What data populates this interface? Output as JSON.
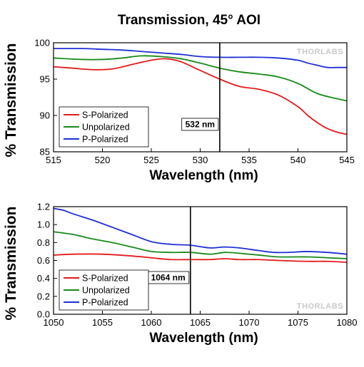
{
  "title": "Transmission, 45° AOI",
  "chart_data": [
    {
      "type": "line",
      "xlabel": "Wavelength (nm)",
      "ylabel": "% Transmission",
      "xlim": [
        515,
        545
      ],
      "ylim": [
        85,
        100
      ],
      "xticks": [
        515,
        520,
        525,
        530,
        535,
        540,
        545
      ],
      "yticks": [
        85,
        90,
        95,
        100
      ],
      "ytick_labels": [
        "85",
        "90",
        "95",
        "100"
      ],
      "grid": false,
      "legend": "bottom-left",
      "marker": {
        "x": 532,
        "label": "532 nm"
      },
      "watermark": "THORLABS",
      "series": [
        {
          "name": "S-Polarized",
          "color": "#e41a1c",
          "x": [
            515,
            517,
            519,
            521,
            523,
            525,
            526.5,
            528,
            530,
            532,
            534,
            536,
            538,
            540,
            541,
            542,
            543,
            544,
            545
          ],
          "y": [
            96.7,
            96.5,
            96.3,
            96.4,
            97.0,
            97.6,
            97.8,
            97.4,
            96.2,
            95.0,
            94.0,
            93.6,
            92.8,
            91.2,
            90.0,
            89.0,
            88.2,
            87.7,
            87.4
          ]
        },
        {
          "name": "Unpolarized",
          "color": "#1a8a1a",
          "x": [
            515,
            518,
            520,
            522,
            524,
            526,
            528,
            530,
            532,
            534,
            536,
            538,
            540,
            542,
            544,
            545
          ],
          "y": [
            97.9,
            97.7,
            97.7,
            97.9,
            98.2,
            98.1,
            97.8,
            97.2,
            96.5,
            96.0,
            95.7,
            95.3,
            94.4,
            93.0,
            92.3,
            92.0
          ]
        },
        {
          "name": "P-Polarized",
          "color": "#1f2fd6",
          "x": [
            515,
            518,
            520,
            522,
            524,
            526,
            528,
            530,
            532,
            534,
            536,
            538,
            540,
            541,
            542,
            543,
            544,
            545
          ],
          "y": [
            99.2,
            99.2,
            99.1,
            99.0,
            98.8,
            98.6,
            98.4,
            98.1,
            98.0,
            98.0,
            98.0,
            97.9,
            97.6,
            97.2,
            96.9,
            96.6,
            96.6,
            96.6
          ]
        }
      ]
    },
    {
      "type": "line",
      "xlabel": "Wavelength (nm)",
      "ylabel": "% Transmission",
      "xlim": [
        1050,
        1080
      ],
      "ylim": [
        0,
        1.2
      ],
      "xticks": [
        1050,
        1055,
        1060,
        1065,
        1070,
        1075,
        1080
      ],
      "yticks": [
        0,
        0.2,
        0.4,
        0.6,
        0.8,
        1.0,
        1.2
      ],
      "ytick_labels": [
        "0.0",
        "0.2",
        "0.4",
        "0.6",
        "0.8",
        "1.0",
        "1.2"
      ],
      "grid": false,
      "legend": "bottom-left",
      "marker": {
        "x": 1064,
        "label": "1064 nm"
      },
      "watermark": "THORLABS",
      "series": [
        {
          "name": "S-Polarized",
          "color": "#e41a1c",
          "x": [
            1050,
            1052,
            1055,
            1058,
            1060,
            1062,
            1064,
            1066,
            1067.5,
            1069,
            1071,
            1073,
            1076,
            1078,
            1080
          ],
          "y": [
            0.66,
            0.67,
            0.67,
            0.65,
            0.63,
            0.61,
            0.61,
            0.61,
            0.62,
            0.61,
            0.61,
            0.6,
            0.59,
            0.59,
            0.58
          ]
        },
        {
          "name": "Unpolarized",
          "color": "#1a8a1a",
          "x": [
            1050,
            1052,
            1054,
            1056,
            1058,
            1060,
            1062,
            1064,
            1066,
            1067.5,
            1069,
            1071,
            1073,
            1076,
            1078,
            1080
          ],
          "y": [
            0.92,
            0.89,
            0.84,
            0.8,
            0.75,
            0.7,
            0.69,
            0.69,
            0.67,
            0.69,
            0.68,
            0.66,
            0.64,
            0.64,
            0.63,
            0.62
          ]
        },
        {
          "name": "P-Polarized",
          "color": "#1f2fd6",
          "x": [
            1050,
            1051,
            1052,
            1054,
            1056,
            1058,
            1060,
            1062,
            1064,
            1066,
            1067.5,
            1069,
            1071,
            1072.5,
            1074,
            1076,
            1078,
            1080
          ],
          "y": [
            1.18,
            1.16,
            1.12,
            1.05,
            0.97,
            0.89,
            0.81,
            0.78,
            0.77,
            0.74,
            0.75,
            0.74,
            0.71,
            0.69,
            0.69,
            0.7,
            0.69,
            0.67
          ]
        }
      ]
    }
  ]
}
